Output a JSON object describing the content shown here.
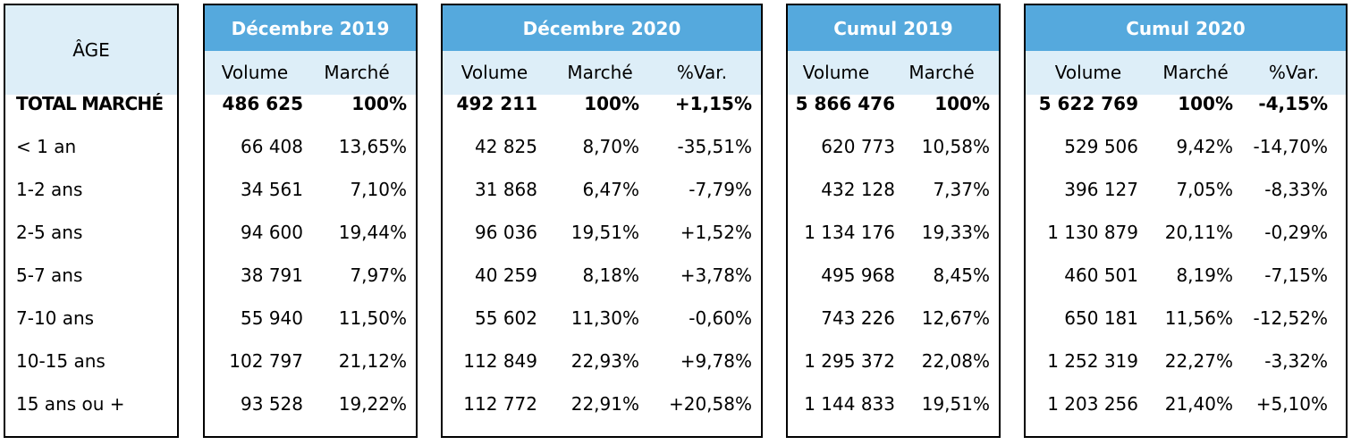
{
  "age_header": "ÂGE",
  "rows": [
    {
      "label": "TOTAL MARCHÉ",
      "bold": true,
      "d2019": {
        "volume": "486 625",
        "marche": "100%"
      },
      "d2020": {
        "volume": "492 211",
        "marche": "100%",
        "var": "+1,15%"
      },
      "c2019": {
        "volume": "5 866 476",
        "marche": "100%"
      },
      "c2020": {
        "volume": "5 622 769",
        "marche": "100%",
        "var": "-4,15%"
      }
    },
    {
      "label": "< 1 an",
      "bold": false,
      "d2019": {
        "volume": "66 408",
        "marche": "13,65%"
      },
      "d2020": {
        "volume": "42 825",
        "marche": "8,70%",
        "var": "-35,51%"
      },
      "c2019": {
        "volume": "620 773",
        "marche": "10,58%"
      },
      "c2020": {
        "volume": "529 506",
        "marche": "9,42%",
        "var": "-14,70%"
      }
    },
    {
      "label": "1-2 ans",
      "bold": false,
      "d2019": {
        "volume": "34 561",
        "marche": "7,10%"
      },
      "d2020": {
        "volume": "31 868",
        "marche": "6,47%",
        "var": "-7,79%"
      },
      "c2019": {
        "volume": "432 128",
        "marche": "7,37%"
      },
      "c2020": {
        "volume": "396 127",
        "marche": "7,05%",
        "var": "-8,33%"
      }
    },
    {
      "label": "2-5 ans",
      "bold": false,
      "d2019": {
        "volume": "94 600",
        "marche": "19,44%"
      },
      "d2020": {
        "volume": "96 036",
        "marche": "19,51%",
        "var": "+1,52%"
      },
      "c2019": {
        "volume": "1 134 176",
        "marche": "19,33%"
      },
      "c2020": {
        "volume": "1 130 879",
        "marche": "20,11%",
        "var": "-0,29%"
      }
    },
    {
      "label": "5-7 ans",
      "bold": false,
      "d2019": {
        "volume": "38 791",
        "marche": "7,97%"
      },
      "d2020": {
        "volume": "40 259",
        "marche": "8,18%",
        "var": "+3,78%"
      },
      "c2019": {
        "volume": "495 968",
        "marche": "8,45%"
      },
      "c2020": {
        "volume": "460 501",
        "marche": "8,19%",
        "var": "-7,15%"
      }
    },
    {
      "label": "7-10 ans",
      "bold": false,
      "d2019": {
        "volume": "55 940",
        "marche": "11,50%"
      },
      "d2020": {
        "volume": "55 602",
        "marche": "11,30%",
        "var": "-0,60%"
      },
      "c2019": {
        "volume": "743 226",
        "marche": "12,67%"
      },
      "c2020": {
        "volume": "650 181",
        "marche": "11,56%",
        "var": "-12,52%"
      }
    },
    {
      "label": "10-15 ans",
      "bold": false,
      "d2019": {
        "volume": "102 797",
        "marche": "21,12%"
      },
      "d2020": {
        "volume": "112 849",
        "marche": "22,93%",
        "var": "+9,78%"
      },
      "c2019": {
        "volume": "1 295 372",
        "marche": "22,08%"
      },
      "c2020": {
        "volume": "1 252 319",
        "marche": "22,27%",
        "var": "-3,32%"
      }
    },
    {
      "label": "15 ans ou +",
      "bold": false,
      "d2019": {
        "volume": "93 528",
        "marche": "19,22%"
      },
      "d2020": {
        "volume": "112 772",
        "marche": "22,91%",
        "var": "+20,58%"
      },
      "c2019": {
        "volume": "1 144 833",
        "marche": "19,51%"
      },
      "c2020": {
        "volume": "1 203 256",
        "marche": "21,40%",
        "var": "+5,10%"
      }
    }
  ],
  "panels": [
    {
      "key": "d2019",
      "title": "Décembre 2019",
      "columns": [
        {
          "field": "volume",
          "label": "Volume"
        },
        {
          "field": "marche",
          "label": "Marché"
        }
      ]
    },
    {
      "key": "d2020",
      "title": "Décembre 2020",
      "columns": [
        {
          "field": "volume",
          "label": "Volume"
        },
        {
          "field": "marche",
          "label": "Marché"
        },
        {
          "field": "var",
          "label": "%Var."
        }
      ]
    },
    {
      "key": "c2019",
      "title": "Cumul 2019",
      "columns": [
        {
          "field": "volume",
          "label": "Volume"
        },
        {
          "field": "marche",
          "label": "Marché"
        }
      ]
    },
    {
      "key": "c2020",
      "title": "Cumul 2020",
      "columns": [
        {
          "field": "volume",
          "label": "Volume"
        },
        {
          "field": "marche",
          "label": "Marché"
        },
        {
          "field": "var",
          "label": "%Var."
        }
      ]
    }
  ],
  "colors": {
    "header_blue": "#55a9dd",
    "subheader_light": "#ddeef8",
    "border": "#000000"
  }
}
